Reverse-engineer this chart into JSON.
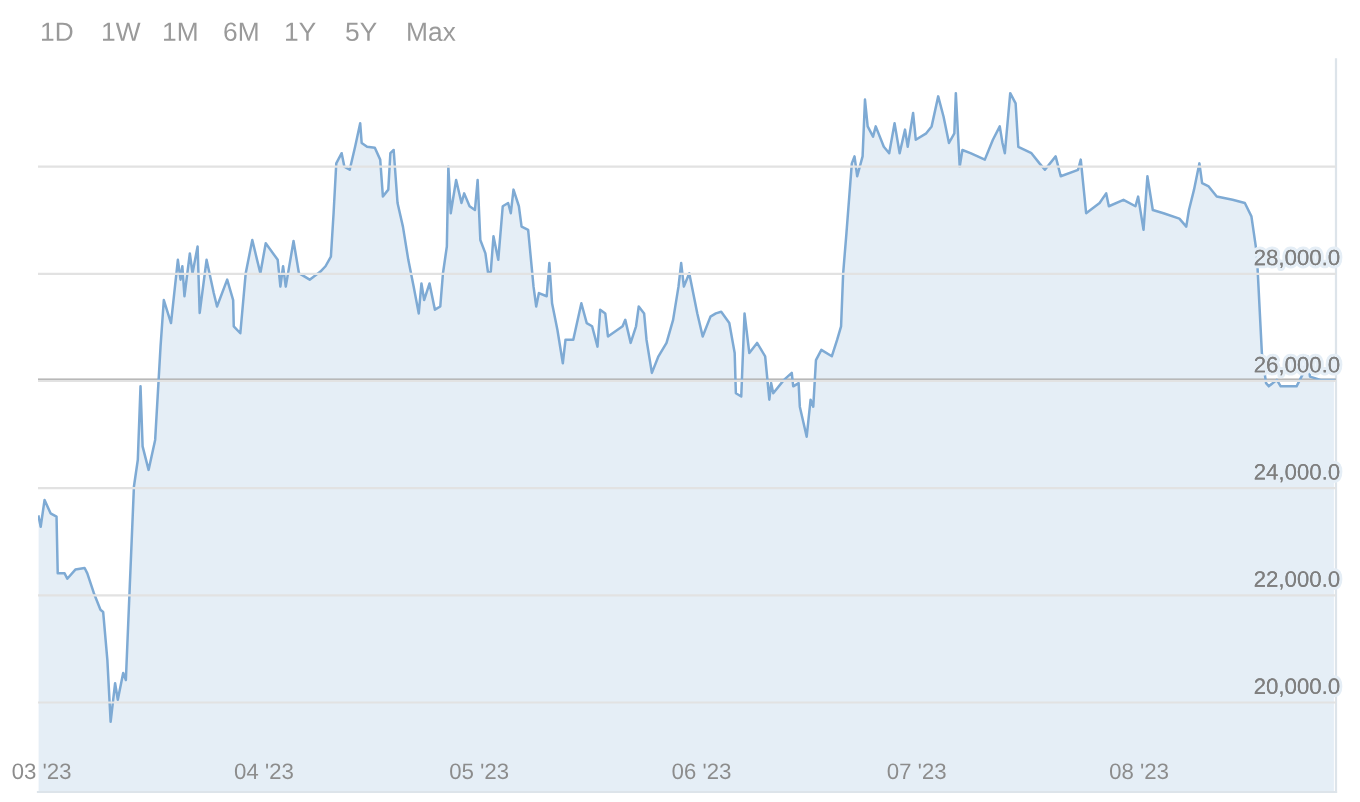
{
  "chart_data": {
    "type": "area",
    "annotations": [
      "1D",
      "1W",
      "1M",
      "6M",
      "1Y",
      "5Y",
      "Max"
    ],
    "x": [
      "2023-02-28T14:00",
      "2023-02-28T21:00",
      "2023-03-01T10:00",
      "2023-03-02T06:00",
      "2023-03-03T02:00",
      "2023-03-03T06:00",
      "2023-03-04T05:00",
      "2023-03-04T14:00",
      "2023-03-05T17:00",
      "2023-03-07T00:00",
      "2023-03-07T09:00",
      "2023-03-08T07:00",
      "2023-03-09T05:00",
      "2023-03-09T14:00",
      "2023-03-10T04:00",
      "2023-03-10T15:00",
      "2023-03-11T06:00",
      "2023-03-11T15:00",
      "2023-03-12T09:00",
      "2023-03-12T18:00",
      "2023-03-13T07:00",
      "2023-03-13T21:00",
      "2023-03-14T10:00",
      "2023-03-14T19:00",
      "2023-03-15T02:00",
      "2023-03-15T22:00",
      "2023-03-16T20:00",
      "2023-03-17T14:00",
      "2023-03-18T01:00",
      "2023-03-19T01:00",
      "2023-03-20T00:00",
      "2023-03-20T09:00",
      "2023-03-20T15:00",
      "2023-03-20T22:00",
      "2023-03-21T16:00",
      "2023-03-22T01:00",
      "2023-03-22T18:00",
      "2023-03-23T01:00",
      "2023-03-24T00:00",
      "2023-03-25T00:00",
      "2023-03-25T11:00",
      "2023-03-26T21:00",
      "2023-03-27T17:00",
      "2023-03-27T19:00",
      "2023-03-28T17:00",
      "2023-03-29T11:00",
      "2023-03-30T09:00",
      "2023-03-31T01:00",
      "2023-03-31T12:00",
      "2023-04-01T06:00",
      "2023-04-02T22:00",
      "2023-04-03T07:00",
      "2023-04-03T16:00",
      "2023-04-04T01:00",
      "2023-04-05T03:00",
      "2023-04-05T21:00",
      "2023-04-06T15:00",
      "2023-04-07T09:00",
      "2023-04-08T21:00",
      "2023-04-09T14:00",
      "2023-04-10T08:00",
      "2023-04-10T17:00",
      "2023-04-11T02:00",
      "2023-04-11T20:00",
      "2023-04-12T05:00",
      "2023-04-12T23:00",
      "2023-04-13T17:00",
      "2023-04-14T10:00",
      "2023-04-14T15:00",
      "2023-04-15T09:00",
      "2023-04-16T11:00",
      "2023-04-17T05:00",
      "2023-04-17T14:00",
      "2023-04-18T08:00",
      "2023-04-18T15:00",
      "2023-04-19T02:00",
      "2023-04-19T15:00",
      "2023-04-20T09:00",
      "2023-04-21T03:00",
      "2023-04-21T21:00",
      "2023-04-22T14:00",
      "2023-04-22T23:00",
      "2023-04-23T08:00",
      "2023-04-24T02:00",
      "2023-04-24T20:00",
      "2023-04-25T14:00",
      "2023-04-25T23:00",
      "2023-04-26T12:00",
      "2023-04-26T17:00",
      "2023-04-27T01:00",
      "2023-04-27T19:00",
      "2023-04-28T13:00",
      "2023-04-28T22:00",
      "2023-04-29T16:00",
      "2023-04-30T10:00",
      "2023-04-30T19:00",
      "2023-05-01T04:00",
      "2023-05-01T21:00",
      "2023-05-02T06:00",
      "2023-05-02T15:00",
      "2023-05-03T00:00",
      "2023-05-03T16:00",
      "2023-05-04T07:00",
      "2023-05-05T01:00",
      "2023-05-05T10:00",
      "2023-05-05T19:00",
      "2023-05-06T13:00",
      "2023-05-06T22:00",
      "2023-05-07T20:00",
      "2023-05-08T14:00",
      "2023-05-08T23:00",
      "2023-05-09T08:00",
      "2023-05-10T10:00",
      "2023-05-10T19:00",
      "2023-05-11T04:00",
      "2023-05-11T22:00",
      "2023-05-12T16:00",
      "2023-05-13T01:00",
      "2023-05-14T03:00",
      "2023-05-15T06:00",
      "2023-05-16T00:00",
      "2023-05-16T18:00",
      "2023-05-17T12:00",
      "2023-05-17T21:00",
      "2023-05-18T14:00",
      "2023-05-18T23:00",
      "2023-05-21T00:00",
      "2023-05-21T09:00",
      "2023-05-22T03:00",
      "2023-05-22T21:00",
      "2023-05-23T06:00",
      "2023-05-24T00:00",
      "2023-05-24T08:00",
      "2023-05-25T02:00",
      "2023-05-26T00:00",
      "2023-05-27T03:00",
      "2023-05-28T01:00",
      "2023-05-28T19:00",
      "2023-05-29T04:00",
      "2023-05-29T13:00",
      "2023-05-30T07:00",
      "2023-05-31T10:00",
      "2023-06-01T04:00",
      "2023-06-02T06:00",
      "2023-06-03T00:00",
      "2023-06-03T18:00",
      "2023-06-04T21:00",
      "2023-06-05T15:00",
      "2023-06-05T19:00",
      "2023-06-06T13:00",
      "2023-06-07T00:00",
      "2023-06-07T16:00",
      "2023-06-08T18:00",
      "2023-06-09T21:00",
      "2023-06-10T11:00",
      "2023-06-10T17:00",
      "2023-06-11T00:00",
      "2023-06-12T12:00",
      "2023-06-13T14:00",
      "2023-06-13T19:00",
      "2023-06-14T13:00",
      "2023-06-14T17:00",
      "2023-06-15T16:00",
      "2023-06-16T05:00",
      "2023-06-16T14:00",
      "2023-06-16T23:00",
      "2023-06-17T17:00",
      "2023-06-19T04:00",
      "2023-06-19T22:00",
      "2023-06-20T11:00",
      "2023-06-20T18:00",
      "2023-06-21T05:00",
      "2023-06-21T23:00",
      "2023-06-22T08:00",
      "2023-06-22T17:00",
      "2023-06-23T11:00",
      "2023-06-23T19:00",
      "2023-06-24T04:00",
      "2023-06-24T22:00",
      "2023-06-25T07:00",
      "2023-06-26T10:00",
      "2023-06-27T04:00",
      "2023-06-27T22:00",
      "2023-06-28T15:00",
      "2023-06-29T09:00",
      "2023-06-29T18:00",
      "2023-06-30T12:00",
      "2023-06-30T21:00",
      "2023-07-02T08:00",
      "2023-07-03T02:00",
      "2023-07-04T00:00",
      "2023-07-04T18:00",
      "2023-07-05T12:00",
      "2023-07-06T06:00",
      "2023-07-06T11:00",
      "2023-07-07T00:00",
      "2023-07-07T09:00",
      "2023-07-08T12:00",
      "2023-07-10T12:00",
      "2023-07-11T15:00",
      "2023-07-12T14:00",
      "2023-07-12T23:00",
      "2023-07-13T07:00",
      "2023-07-14T01:00",
      "2023-07-14T19:00",
      "2023-07-15T04:00",
      "2023-07-17T00:00",
      "2023-07-18T03:00",
      "2023-07-18T21:00",
      "2023-07-20T09:00",
      "2023-07-21T02:00",
      "2023-07-23T12:00",
      "2023-07-23T21:00",
      "2023-07-24T15:00",
      "2023-07-26T12:00",
      "2023-07-27T10:00",
      "2023-07-27T19:00",
      "2023-07-29T20:00",
      "2023-07-31T12:00",
      "2023-07-31T21:00",
      "2023-08-01T15:00",
      "2023-08-02T04:00",
      "2023-08-02T22:00",
      "2023-08-04T10:00",
      "2023-08-06T15:00",
      "2023-08-07T14:00",
      "2023-08-07T23:00",
      "2023-08-08T16:00",
      "2023-08-09T10:00",
      "2023-08-09T19:00",
      "2023-08-10T17:00",
      "2023-08-11T20:00",
      "2023-08-14T01:00",
      "2023-08-15T18:00",
      "2023-08-16T16:00",
      "2023-08-17T10:00",
      "2023-08-18T03:00",
      "2023-08-18T17:00",
      "2023-08-19T02:00",
      "2023-08-20T05:00",
      "2023-08-20T18:00",
      "2023-08-22T23:00",
      "2023-08-23T22:00",
      "2023-08-24T11:00",
      "2023-08-24T20:00",
      "2023-08-26T07:00",
      "2023-08-28T04:00"
    ],
    "series": [
      {
        "color": "#7eaad4",
        "values": [
          23470,
          23280,
          23780,
          23530,
          23470,
          22410,
          22410,
          22310,
          22480,
          22510,
          22410,
          22040,
          21730,
          21690,
          20800,
          19640,
          20360,
          20050,
          20550,
          20420,
          22160,
          24030,
          24530,
          25900,
          24780,
          24340,
          24900,
          26640,
          27510,
          27080,
          28260,
          27890,
          28140,
          27580,
          28380,
          28010,
          28510,
          27270,
          28260,
          27640,
          27390,
          27890,
          27510,
          27020,
          26890,
          28010,
          28630,
          28260,
          28010,
          28570,
          28260,
          27760,
          28140,
          27760,
          28610,
          28010,
          27950,
          27890,
          28040,
          28140,
          28320,
          29130,
          30060,
          30250,
          30000,
          29940,
          30370,
          30810,
          30440,
          30370,
          30350,
          30130,
          29440,
          29570,
          30250,
          30310,
          29320,
          28880,
          28260,
          27760,
          27260,
          27820,
          27510,
          27820,
          27330,
          27390,
          28010,
          28510,
          30000,
          29130,
          29750,
          29320,
          29500,
          29260,
          29190,
          29750,
          28630,
          28380,
          28010,
          28040,
          28700,
          28260,
          29260,
          29320,
          29130,
          29570,
          29260,
          28880,
          28820,
          27760,
          27390,
          27640,
          27580,
          28200,
          27450,
          26950,
          26330,
          26770,
          26770,
          27450,
          27080,
          27020,
          26640,
          27330,
          27260,
          26830,
          27020,
          27140,
          26710,
          27020,
          27390,
          27260,
          26770,
          26150,
          26460,
          26710,
          27140,
          27760,
          28200,
          27760,
          28010,
          27260,
          26830,
          27200,
          27260,
          27290,
          27080,
          26520,
          25770,
          25710,
          27260,
          26520,
          26710,
          26460,
          25650,
          25960,
          25770,
          26020,
          26150,
          25900,
          25960,
          25520,
          24960,
          25650,
          25520,
          26390,
          26580,
          26460,
          26770,
          27020,
          28010,
          28760,
          30060,
          30190,
          29820,
          30190,
          31250,
          30750,
          30560,
          30750,
          30370,
          30250,
          30810,
          30250,
          30690,
          30370,
          31000,
          30500,
          30620,
          30750,
          31310,
          30930,
          30440,
          30620,
          31370,
          30000,
          30310,
          30250,
          30130,
          30500,
          30750,
          30440,
          30250,
          31370,
          31180,
          30370,
          30250,
          30060,
          29940,
          30190,
          29820,
          29940,
          30130,
          29130,
          29320,
          29500,
          29260,
          29380,
          29260,
          29440,
          28820,
          29820,
          29190,
          29130,
          29030,
          28880,
          29190,
          29570,
          30060,
          29690,
          29630,
          29440,
          29380,
          29320,
          29070,
          28380,
          26520,
          25960,
          25900,
          26020,
          25900,
          25900,
          26150,
          26460,
          26080,
          26020,
          26020
        ]
      }
    ],
    "xlim": [
      "2023-02-28T12:00",
      "2023-08-28T11:00"
    ],
    "xticks": [
      {
        "value": "2023-03-01",
        "label": "03 '23"
      },
      {
        "value": "2023-04-01",
        "label": "04 '23"
      },
      {
        "value": "2023-05-01",
        "label": "05 '23"
      },
      {
        "value": "2023-06-01",
        "label": "06 '23"
      },
      {
        "value": "2023-07-01",
        "label": "07 '23"
      },
      {
        "value": "2023-08-01",
        "label": "08 '23"
      }
    ],
    "ylim": [
      18330,
      32000
    ],
    "yticks": [
      {
        "value": 20000,
        "label": "20,000.0"
      },
      {
        "value": 22000,
        "label": "22,000.0"
      },
      {
        "value": 24000,
        "label": "24,000.0"
      },
      {
        "value": 26000,
        "label": "26,000.0"
      },
      {
        "value": 28000,
        "label": "28,000.0"
      },
      {
        "value": 30000,
        "label": null
      }
    ],
    "ref_lines": [
      {
        "axis": "y",
        "value": 26020,
        "color": "#aaaaaa"
      }
    ],
    "grid": "y",
    "line_style": "solid"
  }
}
